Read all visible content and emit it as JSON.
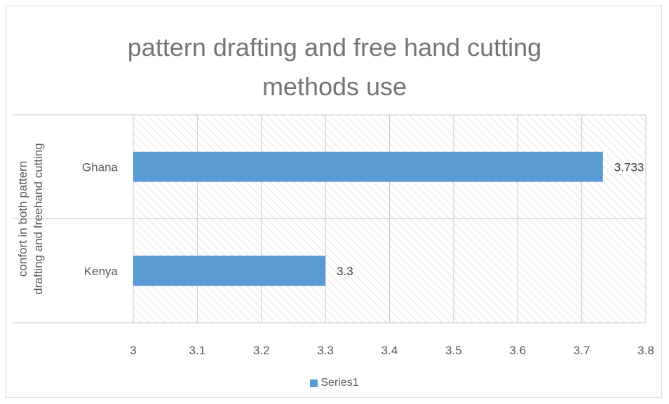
{
  "title_lines": [
    "pattern drafting and free hand cutting",
    "methods use"
  ],
  "chart_data": {
    "type": "bar",
    "orientation": "horizontal",
    "title": "pattern drafting and free hand cutting methods use",
    "categories": [
      "Ghana",
      "Kenya"
    ],
    "series": [
      {
        "name": "Series1",
        "values": [
          3.733,
          3.3
        ],
        "color": "#5b9bd5"
      }
    ],
    "data_labels": [
      "3.733",
      "3.3"
    ],
    "xlim": [
      3,
      3.8
    ],
    "x_ticks": [
      "3",
      "3.1",
      "3.2",
      "3.3",
      "3.4",
      "3.5",
      "3.6",
      "3.7",
      "3.8"
    ],
    "ylabel_lines": [
      "confort in both pattern",
      "drafting and freehand cutting"
    ],
    "xlabel": "",
    "grid": true,
    "plot_background": "hatched",
    "legend_position": "bottom"
  },
  "legend": {
    "label": "Series1"
  }
}
